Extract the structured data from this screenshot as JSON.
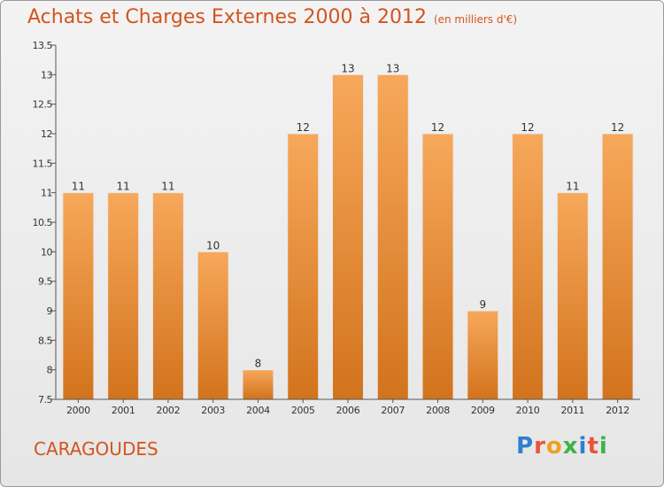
{
  "title": "Achats et Charges Externes 2000 à 2012",
  "unit": "(en milliers d'€)",
  "commune": "CARAGOUDES",
  "logo": {
    "letters": [
      "P",
      "r",
      "o",
      "x",
      "i",
      "t",
      "i"
    ],
    "colors": [
      "#2f7fcf",
      "#e9553a",
      "#f0a020",
      "#3bb54a",
      "#2f7fcf",
      "#e9553a",
      "#3bb54a"
    ]
  },
  "colors": {
    "bar_light": "#f7a85a",
    "bar_dark": "#d2731d",
    "accent": "#d3541f"
  },
  "chart_data": {
    "type": "bar",
    "categories": [
      "2000",
      "2001",
      "2002",
      "2003",
      "2004",
      "2005",
      "2006",
      "2007",
      "2008",
      "2009",
      "2010",
      "2011",
      "2012"
    ],
    "values": [
      11,
      11,
      11,
      10,
      8,
      12,
      13,
      13,
      12,
      9,
      12,
      11,
      12
    ],
    "title": "Achats et Charges Externes 2000 à 2012",
    "subtitle": "(en milliers d'€)",
    "ylim": [
      7.5,
      13.5
    ],
    "yticks": [
      "7.5",
      "8",
      "8.5",
      "9",
      "9.5",
      "10",
      "10.5",
      "11",
      "11.5",
      "12",
      "12.5",
      "13",
      "13.5"
    ],
    "grid": false
  }
}
